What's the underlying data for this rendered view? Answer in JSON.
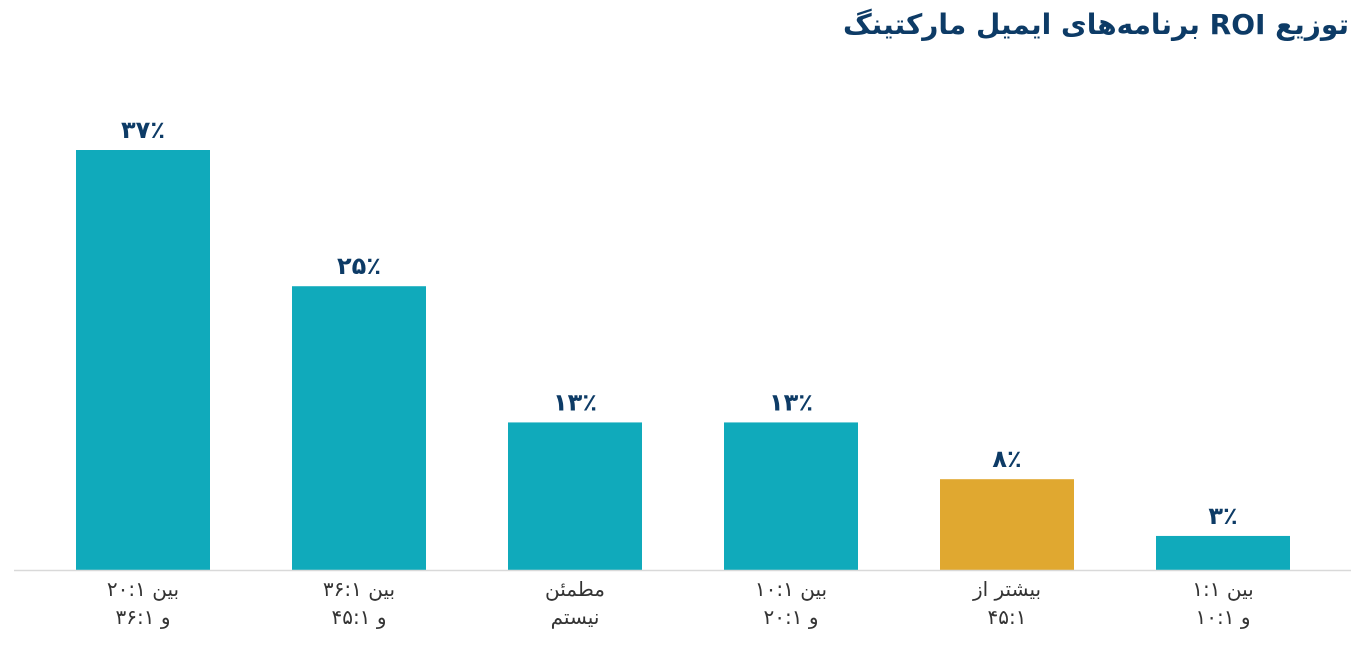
{
  "chart_data": {
    "type": "bar",
    "title": "توزیع ROI برنامه‌های ایمیل مارکتینگ",
    "categories": [
      [
        "بین ۲۰:۱",
        "و ۳۶:۱"
      ],
      [
        "بین ۳۶:۱",
        "و ۴۵:۱"
      ],
      [
        "مطمئن",
        "نیستم"
      ],
      [
        "بین ۱۰:۱",
        "و ۲۰:۱"
      ],
      [
        "بیشتر از",
        "۴۵:۱"
      ],
      [
        "بین ۱:۱",
        "و ۱۰:۱"
      ]
    ],
    "values": [
      37,
      25,
      13,
      13,
      8,
      3
    ],
    "value_labels": [
      "۳۷٪",
      "۲۵٪",
      "۱۳٪",
      "۱۳٪",
      "۸٪",
      "۳٪"
    ],
    "colors": [
      "#10aabb",
      "#10aabb",
      "#10aabb",
      "#10aabb",
      "#e0a830",
      "#10aabb"
    ],
    "ylim": [
      0,
      37
    ],
    "grid": false,
    "legend": "none"
  }
}
